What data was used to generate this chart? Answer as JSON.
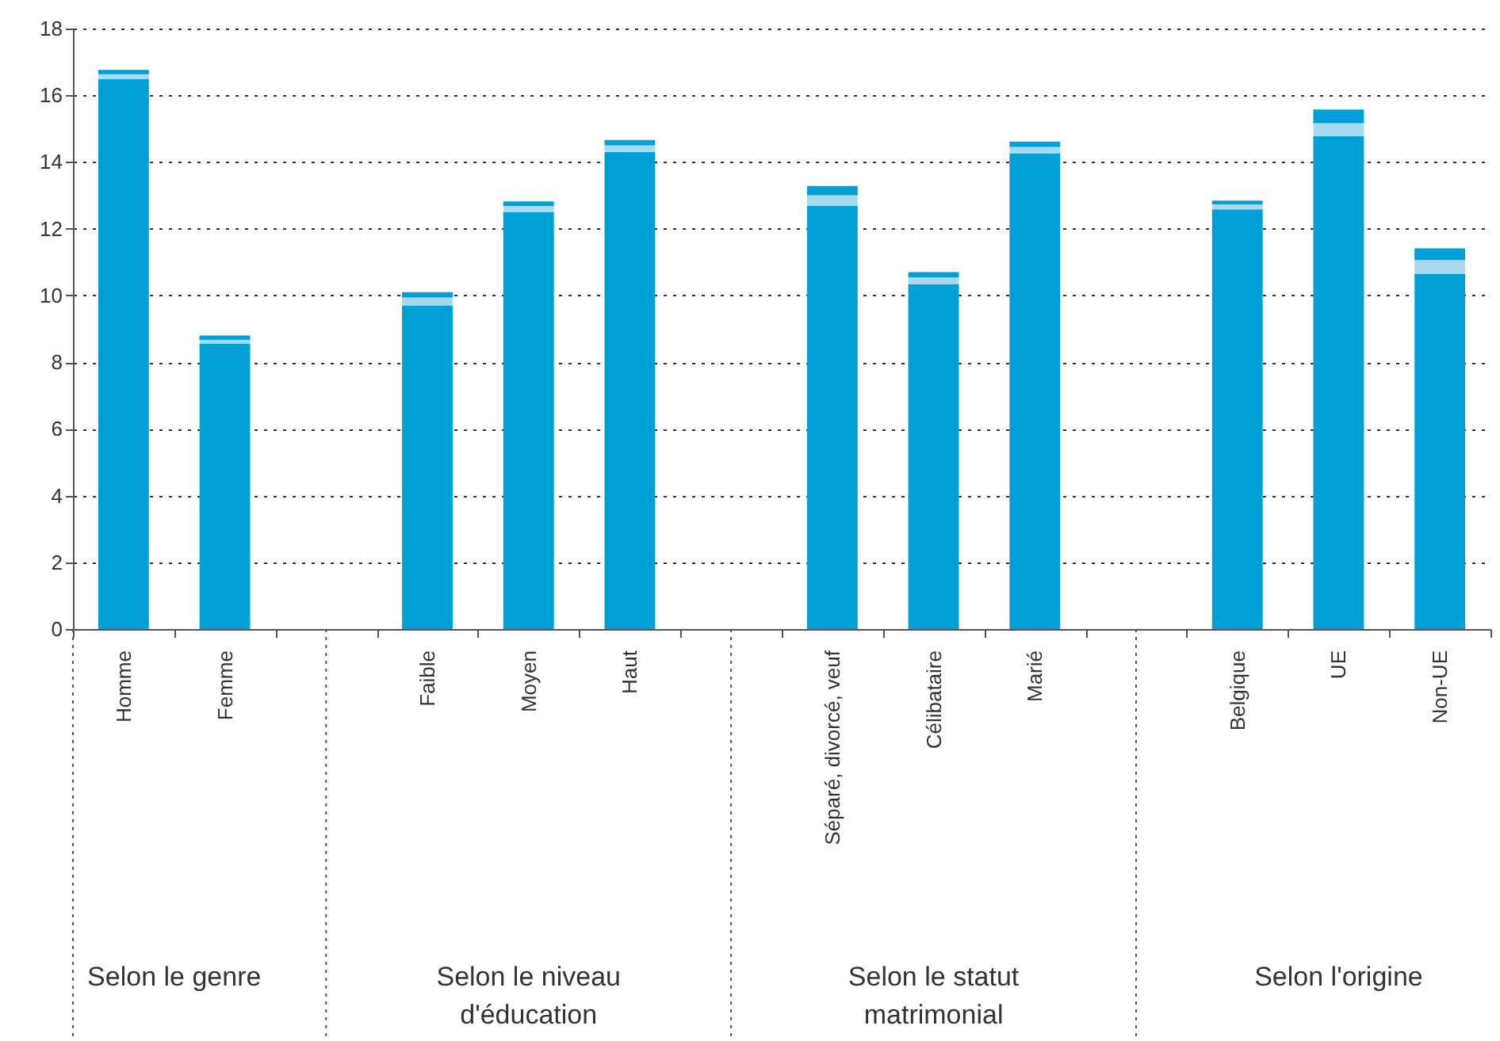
{
  "chart_data": {
    "type": "bar",
    "stacked": true,
    "categories": [
      "Homme",
      "Femme",
      null,
      "Faible",
      "Moyen",
      "Haut",
      null,
      "Séparé, divorcé, veuf",
      "Célibataire",
      "Marié",
      null,
      "Belgique",
      "UE",
      "Non-UE"
    ],
    "series": [
      {
        "color": "#009fd6",
        "values": [
          16.48,
          8.55,
          null,
          9.7,
          12.5,
          14.3,
          null,
          12.68,
          10.34,
          14.26,
          null,
          12.58,
          14.77,
          10.65
        ]
      },
      {
        "color": "#a9d9ee",
        "values": [
          0.15,
          0.12,
          null,
          0.24,
          0.18,
          0.2,
          null,
          0.32,
          0.2,
          0.19,
          null,
          0.15,
          0.39,
          0.41
        ]
      },
      {
        "color": "#009fd6",
        "values": [
          0.13,
          0.13,
          null,
          0.16,
          0.14,
          0.16,
          null,
          0.28,
          0.16,
          0.16,
          null,
          0.11,
          0.41,
          0.35
        ]
      }
    ],
    "ylim": [
      0,
      18
    ],
    "yticks": [
      0,
      2,
      4,
      6,
      8,
      10,
      12,
      14,
      16,
      18
    ],
    "grid": "y",
    "annotations": [
      "Selon le genre",
      "Selon le niveau\nd'éducation",
      "Selon le statut\nmatrimonial",
      "Selon l'origine"
    ]
  }
}
